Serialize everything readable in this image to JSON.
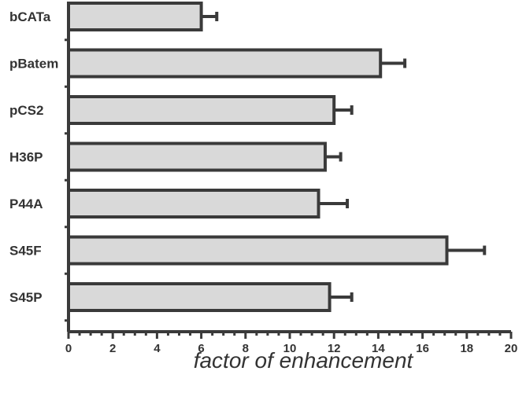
{
  "chart_data": {
    "type": "bar",
    "orientation": "horizontal",
    "title": "",
    "xlabel": "factor of enhancement",
    "ylabel": "",
    "xlim": [
      0,
      20
    ],
    "x_ticks": [
      "0",
      "2",
      "4",
      "6",
      "8",
      "10",
      "12",
      "14",
      "16",
      "18",
      "20"
    ],
    "categories": [
      "bCATa",
      "pBatem",
      "pCS2",
      "H36P",
      "P44A",
      "S45F",
      "S45P"
    ],
    "values": [
      6.0,
      14.1,
      12.0,
      11.6,
      11.3,
      17.1,
      11.8
    ],
    "errors": [
      0.7,
      1.1,
      0.8,
      0.7,
      1.3,
      1.7,
      1.0
    ],
    "grid": false,
    "legend": "none",
    "colors": {
      "bar_fill": "#d9d9d9",
      "bar_stroke": "#3a3a3a",
      "text": "#333333"
    }
  }
}
